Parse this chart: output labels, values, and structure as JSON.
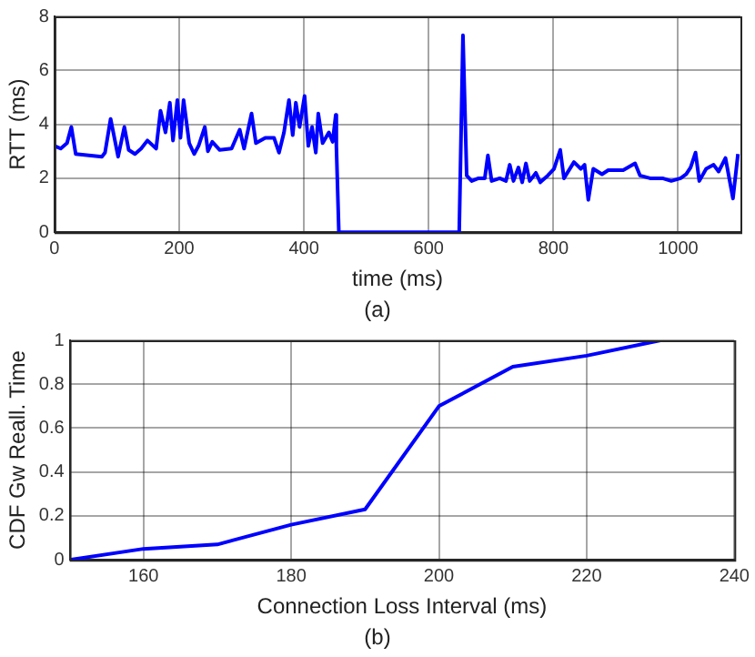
{
  "chart_data": [
    {
      "type": "line",
      "xlabel": "time (ms)",
      "ylabel": "RTT (ms)",
      "annotations": [
        "(a)"
      ],
      "xlim": [
        0,
        1100
      ],
      "xticks": [
        0,
        200,
        400,
        600,
        800,
        1000
      ],
      "ylim": [
        0,
        8
      ],
      "yticks": [
        0,
        2,
        4,
        6,
        8
      ],
      "grid": true,
      "legend": false,
      "series": [
        {
          "color": "#0000ff",
          "x": [
            0,
            10,
            20,
            27,
            34,
            76,
            81,
            90,
            102,
            112,
            119,
            129,
            139,
            149,
            163,
            170,
            178,
            185,
            190,
            197,
            202,
            207,
            216,
            224,
            231,
            241,
            246,
            253,
            265,
            284,
            297,
            304,
            316,
            323,
            338,
            352,
            360,
            368,
            376,
            382,
            387,
            393,
            401,
            407,
            413,
            419,
            423,
            430,
            440,
            446,
            451,
            452,
            456,
            649,
            655,
            661,
            669,
            680,
            690,
            695,
            701,
            714,
            724,
            730,
            736,
            744,
            750,
            756,
            762,
            772,
            779,
            791,
            801,
            811,
            817,
            833,
            844,
            850,
            856,
            864,
            878,
            888,
            912,
            931,
            939,
            955,
            975,
            989,
            1004,
            1013,
            1020,
            1028,
            1034,
            1045,
            1057,
            1065,
            1076,
            1088,
            1096
          ],
          "values": [
            3.2,
            3.1,
            3.3,
            3.9,
            2.9,
            2.8,
            2.95,
            4.2,
            2.8,
            3.9,
            3.05,
            2.9,
            3.1,
            3.4,
            3.1,
            4.5,
            3.7,
            4.8,
            3.4,
            4.9,
            3.5,
            4.9,
            3.3,
            2.9,
            3.2,
            3.9,
            3.0,
            3.35,
            3.05,
            3.1,
            3.8,
            3.1,
            4.4,
            3.3,
            3.5,
            3.5,
            2.95,
            3.7,
            4.9,
            3.6,
            4.8,
            3.9,
            5.05,
            3.2,
            3.9,
            2.95,
            4.4,
            3.3,
            3.7,
            3.35,
            4.35,
            3.2,
            0,
            0,
            7.3,
            2.1,
            1.9,
            2.0,
            2.0,
            2.85,
            1.9,
            2.0,
            1.9,
            2.5,
            1.9,
            2.4,
            1.85,
            2.55,
            1.9,
            2.2,
            1.85,
            2.1,
            2.35,
            3.05,
            2.0,
            2.6,
            2.35,
            2.5,
            1.2,
            2.35,
            2.15,
            2.3,
            2.3,
            2.55,
            2.1,
            2.0,
            2.0,
            1.9,
            2.0,
            2.15,
            2.4,
            2.95,
            1.9,
            2.35,
            2.5,
            2.25,
            2.75,
            1.25,
            2.9
          ]
        }
      ]
    },
    {
      "type": "line",
      "xlabel": "Connection Loss Interval (ms)",
      "ylabel": "CDF Gw Reall. Time",
      "annotations": [
        "(b)"
      ],
      "xlim": [
        150,
        240
      ],
      "xticks": [
        {
          "value": 150,
          "label": null
        },
        160,
        180,
        200,
        220,
        240
      ],
      "ylim": [
        0,
        1
      ],
      "yticks": [
        0,
        0.2,
        0.4,
        0.6,
        0.8,
        1
      ],
      "grid": true,
      "legend": false,
      "series": [
        {
          "color": "#0000ff",
          "x": [
            150,
            160,
            170,
            180,
            190,
            200,
            210,
            220,
            230
          ],
          "values": [
            0,
            0.05,
            0.07,
            0.16,
            0.23,
            0.7,
            0.88,
            0.93,
            1.0
          ]
        }
      ]
    }
  ]
}
